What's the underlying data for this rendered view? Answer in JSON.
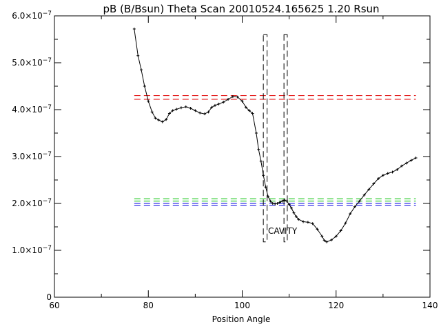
{
  "chart_data": {
    "type": "line",
    "title": "pB (B/Bsun) Theta Scan 20010524.165625 1.20 Rsun",
    "xlabel": "Position Angle",
    "ylabel": "",
    "xlim": [
      60,
      140
    ],
    "ylim": [
      0,
      6e-07
    ],
    "x_ticks": [
      60,
      80,
      100,
      120,
      140
    ],
    "x_tick_labels": [
      "60",
      "80",
      "100",
      "120",
      "140"
    ],
    "y_ticks": [
      0,
      1e-07,
      2e-07,
      3e-07,
      4e-07,
      5e-07,
      6e-07
    ],
    "y_tick_labels": [
      {
        "mantissa": "0",
        "exponent": ""
      },
      {
        "mantissa": "1.0×10",
        "exponent": "−7"
      },
      {
        "mantissa": "2.0×10",
        "exponent": "−7"
      },
      {
        "mantissa": "3.0×10",
        "exponent": "−7"
      },
      {
        "mantissa": "4.0×10",
        "exponent": "−7"
      },
      {
        "mantissa": "5.0×10",
        "exponent": "−7"
      },
      {
        "mantissa": "6.0×10",
        "exponent": "−7"
      }
    ],
    "series": [
      {
        "color": "#000000",
        "marker": "plus",
        "x": [
          77,
          77.8,
          78.5,
          79.2,
          80,
          80.8,
          81.5,
          82.2,
          83,
          83.8,
          84.5,
          85.2,
          86,
          87,
          88,
          89,
          90,
          91,
          92,
          92.8,
          93.5,
          94.2,
          95,
          96,
          97,
          98,
          99,
          100,
          100.8,
          101.5,
          102.2,
          103,
          103.5,
          104,
          104.5,
          105,
          105.5,
          106,
          106.5,
          107,
          107.5,
          108,
          108.5,
          109,
          109.5,
          110,
          110.5,
          111,
          111.5,
          112,
          113,
          114,
          115,
          116,
          117,
          117.5,
          118,
          119,
          120,
          121,
          122,
          123,
          124,
          125,
          126,
          127,
          128,
          129,
          130,
          131,
          132,
          133,
          134,
          135,
          136,
          137
        ],
        "y": [
          5.72e-07,
          5.15e-07,
          4.85e-07,
          4.5e-07,
          4.18e-07,
          3.95e-07,
          3.82e-07,
          3.78e-07,
          3.74e-07,
          3.79e-07,
          3.92e-07,
          3.98e-07,
          4.01e-07,
          4.04e-07,
          4.06e-07,
          4.03e-07,
          3.98e-07,
          3.93e-07,
          3.91e-07,
          3.95e-07,
          4.05e-07,
          4.09e-07,
          4.12e-07,
          4.16e-07,
          4.22e-07,
          4.28e-07,
          4.27e-07,
          4.18e-07,
          4.05e-07,
          3.98e-07,
          3.92e-07,
          3.5e-07,
          3.15e-07,
          2.9e-07,
          2.6e-07,
          2.35e-07,
          2.15e-07,
          2.05e-07,
          2e-07,
          1.99e-07,
          2e-07,
          2.02e-07,
          2.05e-07,
          2.07e-07,
          2.05e-07,
          1.98e-07,
          1.9e-07,
          1.8e-07,
          1.72e-07,
          1.66e-07,
          1.61e-07,
          1.6e-07,
          1.57e-07,
          1.45e-07,
          1.3e-07,
          1.21e-07,
          1.18e-07,
          1.22e-07,
          1.3e-07,
          1.42e-07,
          1.58e-07,
          1.78e-07,
          1.93e-07,
          2.05e-07,
          2.18e-07,
          2.3e-07,
          2.42e-07,
          2.53e-07,
          2.6e-07,
          2.64e-07,
          2.67e-07,
          2.72e-07,
          2.8e-07,
          2.86e-07,
          2.92e-07,
          2.97e-07
        ]
      }
    ],
    "reference_lines": [
      {
        "y": 4.3e-07,
        "color": "#e00000",
        "dash": true
      },
      {
        "y": 4.22e-07,
        "color": "#e00000",
        "dash": true
      },
      {
        "y": 2.1e-07,
        "color": "#00c000",
        "dash": true
      },
      {
        "y": 2.05e-07,
        "color": "#00c000",
        "dash": true
      },
      {
        "y": 2e-07,
        "color": "#0000e0",
        "dash": true
      },
      {
        "y": 1.96e-07,
        "color": "#0000e0",
        "dash": true
      }
    ],
    "line_x_range": [
      77,
      137
    ],
    "cavity_boxes": [
      {
        "x0": 104.5,
        "x1": 105.3,
        "y0": 1.18e-07,
        "y1": 5.6e-07
      },
      {
        "x0": 108.9,
        "x1": 109.6,
        "y0": 1.18e-07,
        "y1": 5.6e-07
      }
    ],
    "annotation": {
      "text": "CAVITY",
      "x": 105.5,
      "y": 1.35e-07,
      "color": "#e00000"
    }
  }
}
